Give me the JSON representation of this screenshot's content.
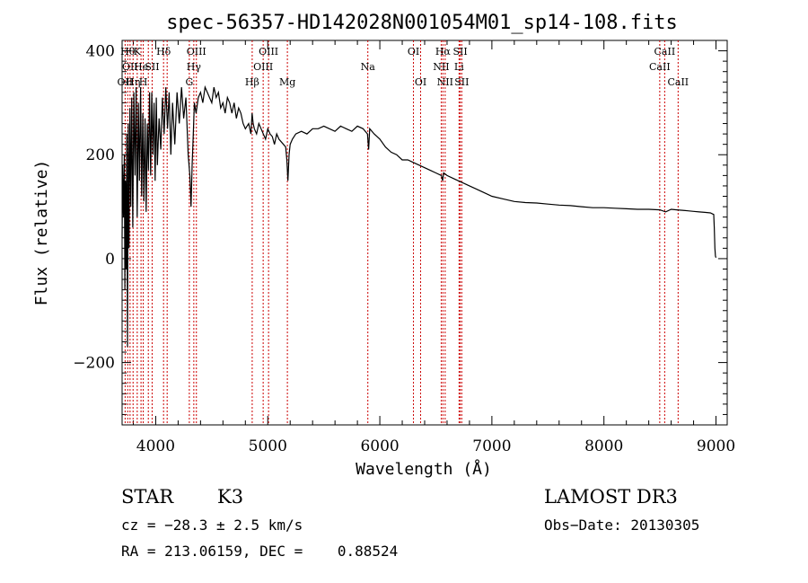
{
  "chart_data": {
    "type": "line",
    "title": "spec-56357-HD142028N001054M01_sp14-108.fits",
    "xlabel": "Wavelength (Å)",
    "ylabel": "Flux (relative)",
    "xlim": [
      3700,
      9100
    ],
    "ylim": [
      -320,
      420
    ],
    "x_ticks": [
      4000,
      5000,
      6000,
      7000,
      8000,
      9000
    ],
    "x_tick_labels": [
      "4000",
      "5000",
      "6000",
      "7000",
      "8000",
      "9000"
    ],
    "y_ticks": [
      -200,
      0,
      200,
      400
    ],
    "y_tick_labels": [
      "−200",
      "0",
      "200",
      "400"
    ],
    "series": [
      {
        "name": "flux",
        "x": [
          3700,
          3705,
          3712,
          3720,
          3725,
          3730,
          3736,
          3742,
          3748,
          3755,
          3762,
          3770,
          3778,
          3786,
          3795,
          3805,
          3815,
          3825,
          3835,
          3845,
          3855,
          3865,
          3875,
          3885,
          3895,
          3905,
          3915,
          3925,
          3935,
          3945,
          3955,
          3965,
          3975,
          3985,
          3995,
          4005,
          4015,
          4030,
          4045,
          4060,
          4075,
          4090,
          4105,
          4120,
          4135,
          4150,
          4170,
          4190,
          4210,
          4230,
          4250,
          4270,
          4290,
          4305,
          4315,
          4325,
          4335,
          4345,
          4360,
          4380,
          4400,
          4420,
          4440,
          4460,
          4480,
          4500,
          4520,
          4540,
          4560,
          4580,
          4600,
          4620,
          4640,
          4660,
          4680,
          4700,
          4720,
          4740,
          4760,
          4780,
          4800,
          4830,
          4850,
          4860,
          4870,
          4880,
          4900,
          4920,
          4940,
          4960,
          4980,
          5000,
          5020,
          5040,
          5060,
          5080,
          5100,
          5120,
          5140,
          5160,
          5170,
          5180,
          5190,
          5200,
          5220,
          5250,
          5300,
          5350,
          5400,
          5450,
          5500,
          5550,
          5600,
          5650,
          5700,
          5750,
          5800,
          5850,
          5890,
          5900,
          5910,
          5950,
          6000,
          6050,
          6100,
          6150,
          6200,
          6250,
          6300,
          6350,
          6400,
          6450,
          6500,
          6550,
          6560,
          6570,
          6600,
          6650,
          6700,
          6750,
          6800,
          6850,
          6900,
          6950,
          7000,
          7100,
          7200,
          7300,
          7400,
          7500,
          7600,
          7700,
          7800,
          7900,
          8000,
          8100,
          8200,
          8300,
          8400,
          8500,
          8550,
          8600,
          8650,
          8700,
          8750,
          8800,
          8850,
          8900,
          8950,
          8980,
          8985,
          8990,
          8995,
          9000
        ],
        "y": [
          40,
          180,
          80,
          200,
          -60,
          150,
          -20,
          240,
          -170,
          260,
          20,
          290,
          100,
          310,
          60,
          320,
          160,
          330,
          80,
          300,
          150,
          330,
          120,
          280,
          110,
          270,
          90,
          260,
          170,
          320,
          160,
          320,
          200,
          300,
          150,
          310,
          180,
          270,
          210,
          310,
          240,
          330,
          250,
          320,
          200,
          300,
          220,
          320,
          260,
          330,
          270,
          310,
          200,
          160,
          100,
          180,
          240,
          300,
          280,
          310,
          320,
          300,
          330,
          320,
          310,
          300,
          330,
          310,
          320,
          290,
          300,
          280,
          310,
          300,
          280,
          300,
          270,
          290,
          280,
          260,
          250,
          260,
          240,
          280,
          260,
          250,
          240,
          260,
          250,
          240,
          230,
          250,
          240,
          235,
          220,
          240,
          230,
          225,
          220,
          215,
          190,
          150,
          200,
          220,
          230,
          240,
          245,
          240,
          250,
          250,
          255,
          250,
          245,
          255,
          250,
          245,
          255,
          250,
          240,
          210,
          250,
          240,
          230,
          215,
          205,
          200,
          190,
          190,
          185,
          180,
          175,
          170,
          165,
          160,
          150,
          165,
          160,
          155,
          150,
          145,
          140,
          135,
          130,
          125,
          120,
          115,
          110,
          108,
          107,
          105,
          103,
          102,
          100,
          98,
          98,
          97,
          96,
          95,
          95,
          94,
          90,
          95,
          94,
          93,
          92,
          91,
          90,
          89,
          88,
          85,
          60,
          20,
          5,
          2
        ]
      }
    ],
    "emission_lines": [
      {
        "wavelength": 3727,
        "label": "OII",
        "row": 3
      },
      {
        "wavelength": 3750,
        "label": "Hθ",
        "row": 1
      },
      {
        "wavelength": 3771,
        "label": "OII",
        "row": 2
      },
      {
        "wavelength": 3798,
        "label": "Hη",
        "row": 3
      },
      {
        "wavelength": 3835,
        "label": "K",
        "row": 1
      },
      {
        "wavelength": 3869,
        "label": "He",
        "row": 2
      },
      {
        "wavelength": 3889,
        "label": "H",
        "row": 3
      },
      {
        "wavelength": 3934,
        "label": "",
        "row": 1
      },
      {
        "wavelength": 3968,
        "label": "SII",
        "row": 2
      },
      {
        "wavelength": 4070,
        "label": "Hδ",
        "row": 1
      },
      {
        "wavelength": 4102,
        "label": "",
        "row": 2
      },
      {
        "wavelength": 4300,
        "label": "G",
        "row": 3
      },
      {
        "wavelength": 4340,
        "label": "Hγ",
        "row": 2
      },
      {
        "wavelength": 4363,
        "label": "OIII",
        "row": 1
      },
      {
        "wavelength": 4861,
        "label": "Hβ",
        "row": 3
      },
      {
        "wavelength": 4959,
        "label": "OIII",
        "row": 2
      },
      {
        "wavelength": 5007,
        "label": "OIII",
        "row": 1
      },
      {
        "wavelength": 5175,
        "label": "Mg",
        "row": 3
      },
      {
        "wavelength": 5893,
        "label": "Na",
        "row": 2
      },
      {
        "wavelength": 6300,
        "label": "OI",
        "row": 1
      },
      {
        "wavelength": 6364,
        "label": "OI",
        "row": 3
      },
      {
        "wavelength": 6548,
        "label": "NII",
        "row": 2
      },
      {
        "wavelength": 6563,
        "label": "Hα",
        "row": 1
      },
      {
        "wavelength": 6583,
        "label": "NII",
        "row": 3
      },
      {
        "wavelength": 6707,
        "label": "Li",
        "row": 2
      },
      {
        "wavelength": 6717,
        "label": "SII",
        "row": 1
      },
      {
        "wavelength": 6731,
        "label": "SII",
        "row": 3
      },
      {
        "wavelength": 8498,
        "label": "CaII",
        "row": 2
      },
      {
        "wavelength": 8542,
        "label": "CaII",
        "row": 1
      },
      {
        "wavelength": 8662,
        "label": "CaII",
        "row": 3
      }
    ]
  },
  "footer": {
    "object_type": "STAR",
    "subclass": "K3",
    "survey": "LAMOST DR3",
    "cz": "cz = −28.3 ± 2.5 km/s",
    "obs_date": "Obs−Date: 20130305",
    "radec": "RA = 213.06159, DEC =    0.88524"
  }
}
